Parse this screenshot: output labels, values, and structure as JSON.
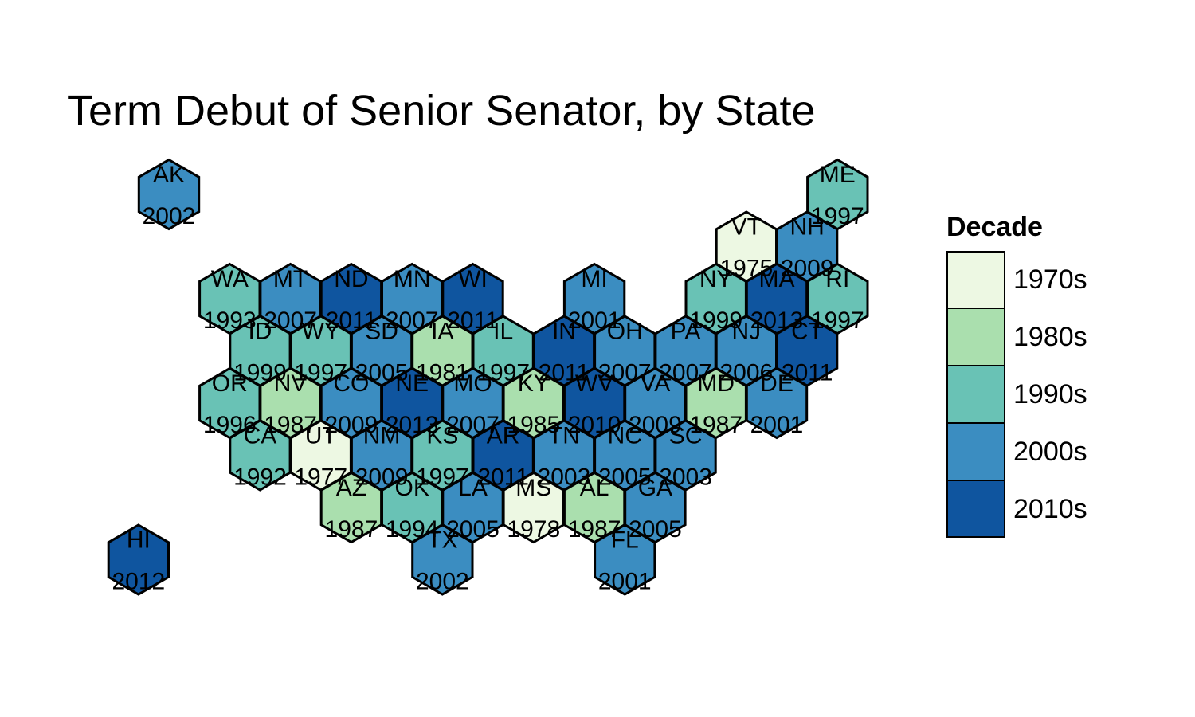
{
  "title": "Term Debut of Senior Senator, by State",
  "legend": {
    "title": "Decade",
    "items": [
      {
        "label": "1970s",
        "color": "#edf8e3"
      },
      {
        "label": "1980s",
        "color": "#aadfae"
      },
      {
        "label": "1990s",
        "color": "#69c2b5"
      },
      {
        "label": "2000s",
        "color": "#3b8dc1"
      },
      {
        "label": "2010s",
        "color": "#0f559f"
      }
    ]
  },
  "states": [
    {
      "abbr": "AK",
      "year": "2002",
      "decade": "2000s",
      "col": 0,
      "row": 0
    },
    {
      "abbr": "ME",
      "year": "1997",
      "decade": "1990s",
      "col": 11,
      "row": 0
    },
    {
      "abbr": "VT",
      "year": "1975",
      "decade": "1970s",
      "col": 9.5,
      "row": 1
    },
    {
      "abbr": "NH",
      "year": "2009",
      "decade": "2000s",
      "col": 10.5,
      "row": 1
    },
    {
      "abbr": "WA",
      "year": "1993",
      "decade": "1990s",
      "col": 1,
      "row": 2
    },
    {
      "abbr": "MT",
      "year": "2007",
      "decade": "2000s",
      "col": 2,
      "row": 2
    },
    {
      "abbr": "ND",
      "year": "2011",
      "decade": "2010s",
      "col": 3,
      "row": 2
    },
    {
      "abbr": "MN",
      "year": "2007",
      "decade": "2000s",
      "col": 4,
      "row": 2
    },
    {
      "abbr": "WI",
      "year": "2011",
      "decade": "2010s",
      "col": 5,
      "row": 2
    },
    {
      "abbr": "MI",
      "year": "2001",
      "decade": "2000s",
      "col": 7,
      "row": 2
    },
    {
      "abbr": "NY",
      "year": "1999",
      "decade": "1990s",
      "col": 9,
      "row": 2
    },
    {
      "abbr": "MA",
      "year": "2013",
      "decade": "2010s",
      "col": 10,
      "row": 2
    },
    {
      "abbr": "RI",
      "year": "1997",
      "decade": "1990s",
      "col": 11,
      "row": 2
    },
    {
      "abbr": "ID",
      "year": "1999",
      "decade": "1990s",
      "col": 1.5,
      "row": 3
    },
    {
      "abbr": "WY",
      "year": "1997",
      "decade": "1990s",
      "col": 2.5,
      "row": 3
    },
    {
      "abbr": "SD",
      "year": "2005",
      "decade": "2000s",
      "col": 3.5,
      "row": 3
    },
    {
      "abbr": "IA",
      "year": "1981",
      "decade": "1980s",
      "col": 4.5,
      "row": 3
    },
    {
      "abbr": "IL",
      "year": "1997",
      "decade": "1990s",
      "col": 5.5,
      "row": 3
    },
    {
      "abbr": "IN",
      "year": "2011",
      "decade": "2010s",
      "col": 6.5,
      "row": 3
    },
    {
      "abbr": "OH",
      "year": "2007",
      "decade": "2000s",
      "col": 7.5,
      "row": 3
    },
    {
      "abbr": "PA",
      "year": "2007",
      "decade": "2000s",
      "col": 8.5,
      "row": 3
    },
    {
      "abbr": "NJ",
      "year": "2006",
      "decade": "2000s",
      "col": 9.5,
      "row": 3
    },
    {
      "abbr": "CT",
      "year": "2011",
      "decade": "2010s",
      "col": 10.5,
      "row": 3
    },
    {
      "abbr": "OR",
      "year": "1996",
      "decade": "1990s",
      "col": 1,
      "row": 4
    },
    {
      "abbr": "NV",
      "year": "1987",
      "decade": "1980s",
      "col": 2,
      "row": 4
    },
    {
      "abbr": "CO",
      "year": "2009",
      "decade": "2000s",
      "col": 3,
      "row": 4
    },
    {
      "abbr": "NE",
      "year": "2013",
      "decade": "2010s",
      "col": 4,
      "row": 4
    },
    {
      "abbr": "MO",
      "year": "2007",
      "decade": "2000s",
      "col": 5,
      "row": 4
    },
    {
      "abbr": "KY",
      "year": "1985",
      "decade": "1980s",
      "col": 6,
      "row": 4
    },
    {
      "abbr": "WV",
      "year": "2010",
      "decade": "2010s",
      "col": 7,
      "row": 4
    },
    {
      "abbr": "VA",
      "year": "2009",
      "decade": "2000s",
      "col": 8,
      "row": 4
    },
    {
      "abbr": "MD",
      "year": "1987",
      "decade": "1980s",
      "col": 9,
      "row": 4
    },
    {
      "abbr": "DE",
      "year": "2001",
      "decade": "2000s",
      "col": 10,
      "row": 4
    },
    {
      "abbr": "CA",
      "year": "1992",
      "decade": "1990s",
      "col": 1.5,
      "row": 5
    },
    {
      "abbr": "UT",
      "year": "1977",
      "decade": "1970s",
      "col": 2.5,
      "row": 5
    },
    {
      "abbr": "NM",
      "year": "2009",
      "decade": "2000s",
      "col": 3.5,
      "row": 5
    },
    {
      "abbr": "KS",
      "year": "1997",
      "decade": "1990s",
      "col": 4.5,
      "row": 5
    },
    {
      "abbr": "AR",
      "year": "2011",
      "decade": "2010s",
      "col": 5.5,
      "row": 5
    },
    {
      "abbr": "TN",
      "year": "2003",
      "decade": "2000s",
      "col": 6.5,
      "row": 5
    },
    {
      "abbr": "NC",
      "year": "2005",
      "decade": "2000s",
      "col": 7.5,
      "row": 5
    },
    {
      "abbr": "SC",
      "year": "2003",
      "decade": "2000s",
      "col": 8.5,
      "row": 5
    },
    {
      "abbr": "AZ",
      "year": "1987",
      "decade": "1980s",
      "col": 3,
      "row": 6
    },
    {
      "abbr": "OK",
      "year": "1994",
      "decade": "1990s",
      "col": 4,
      "row": 6
    },
    {
      "abbr": "LA",
      "year": "2005",
      "decade": "2000s",
      "col": 5,
      "row": 6
    },
    {
      "abbr": "MS",
      "year": "1978",
      "decade": "1970s",
      "col": 6,
      "row": 6
    },
    {
      "abbr": "AL",
      "year": "1987",
      "decade": "1980s",
      "col": 7,
      "row": 6
    },
    {
      "abbr": "GA",
      "year": "2005",
      "decade": "2000s",
      "col": 8,
      "row": 6
    },
    {
      "abbr": "HI",
      "year": "2012",
      "decade": "2010s",
      "col": -0.5,
      "row": 7
    },
    {
      "abbr": "TX",
      "year": "2002",
      "decade": "2000s",
      "col": 4.5,
      "row": 7
    },
    {
      "abbr": "FL",
      "year": "2001",
      "decade": "2000s",
      "col": 7.5,
      "row": 7
    }
  ]
}
